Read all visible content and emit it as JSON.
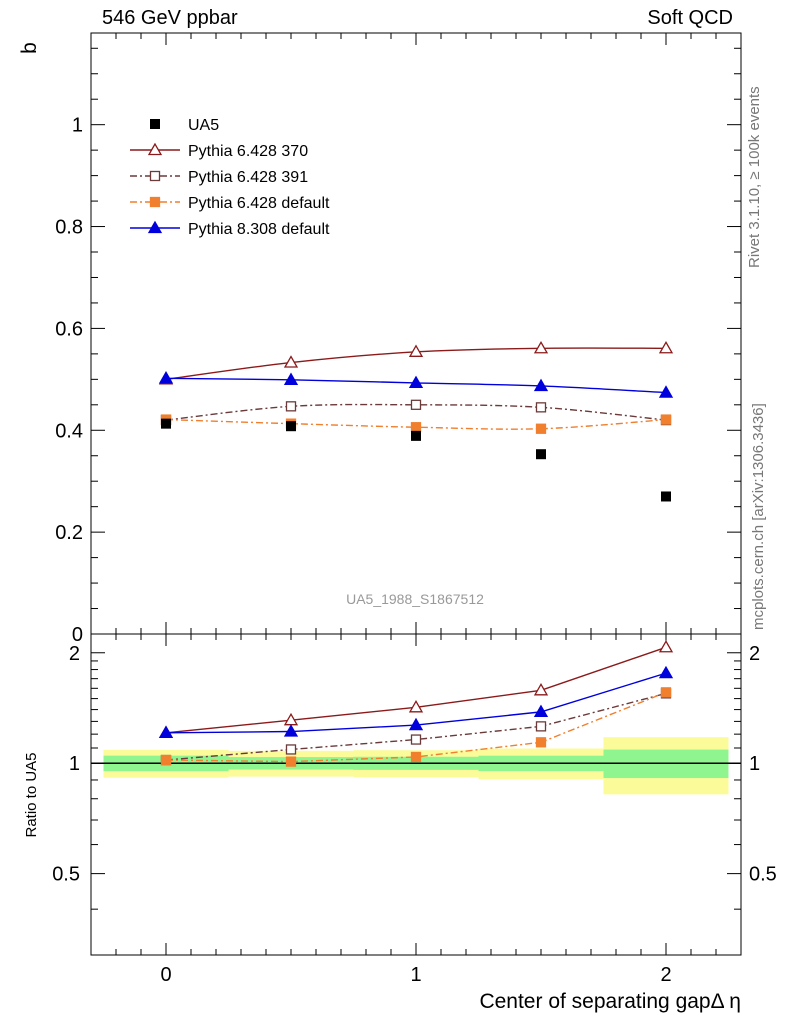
{
  "header": {
    "left": "546 GeV ppbar",
    "right": "Soft QCD"
  },
  "side_labels": {
    "rivet": "Rivet 3.1.10, ≥ 100k events",
    "mcplots": "mcplots.cern.ch [arXiv:1306.3436]"
  },
  "watermark": "UA5_1988_S1867512",
  "chart_data": {
    "type": "line",
    "xlabel": "Center of separating gapΔ η",
    "ylabel": "b",
    "ratio_ylabel": "Ratio to UA5",
    "xlim": [
      -0.3,
      2.3
    ],
    "ylim": [
      0,
      1.18
    ],
    "ratio_ylim": [
      0.3,
      2.25
    ],
    "x_ticks": [
      "0",
      "1",
      "2"
    ],
    "y_ticks": [
      "0",
      "0.2",
      "0.4",
      "0.6",
      "0.8",
      "1"
    ],
    "ratio_ticks": [
      "0.5",
      "1",
      "2"
    ],
    "x": [
      0,
      0.5,
      1,
      1.5,
      2
    ],
    "data": {
      "name": "UA5",
      "color": "#000000",
      "values": [
        0.413,
        0.408,
        0.389,
        0.353,
        0.27
      ],
      "band_inner": [
        0.02,
        0.016,
        0.016,
        0.017,
        0.024
      ],
      "band_outer": [
        0.036,
        0.033,
        0.033,
        0.034,
        0.048
      ]
    },
    "series": [
      {
        "name": "Pythia 6.428 370",
        "color": "#8b1a1a",
        "marker": "open-triangle",
        "dash": "",
        "values": [
          0.5,
          0.533,
          0.554,
          0.561,
          0.561
        ],
        "ratio": [
          1.21,
          1.31,
          1.42,
          1.58,
          2.07
        ]
      },
      {
        "name": "Pythia 6.428 391",
        "color": "#6b3a3a",
        "marker": "open-square",
        "dash": "7,3,2,3",
        "values": [
          0.42,
          0.447,
          0.45,
          0.445,
          0.42
        ],
        "ratio": [
          1.02,
          1.09,
          1.16,
          1.26,
          1.55
        ]
      },
      {
        "name": "Pythia 6.428 default",
        "color": "#f07f2e",
        "marker": "filled-square",
        "dash": "7,3,2,3",
        "values": [
          0.421,
          0.413,
          0.406,
          0.403,
          0.421
        ],
        "ratio": [
          1.02,
          1.01,
          1.04,
          1.14,
          1.56
        ]
      },
      {
        "name": "Pythia 8.308 default",
        "color": "#0000dd",
        "marker": "filled-triangle",
        "dash": "",
        "values": [
          0.502,
          0.499,
          0.493,
          0.487,
          0.474
        ],
        "ratio": [
          1.21,
          1.22,
          1.27,
          1.38,
          1.76
        ]
      }
    ]
  }
}
